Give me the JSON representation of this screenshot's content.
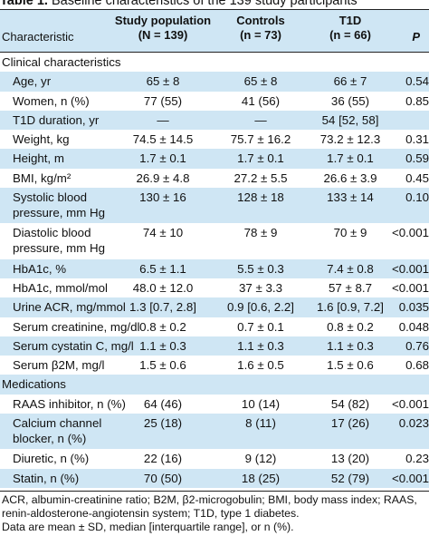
{
  "title": {
    "label": "Table 1.",
    "text": "Baseline characteristics of the 139 study participants"
  },
  "columns": [
    {
      "line1": "Characteristic",
      "line2": ""
    },
    {
      "line1": "Study population",
      "line2": "(N = 139)"
    },
    {
      "line1": "Controls",
      "line2": "(n = 73)"
    },
    {
      "line1": "T1D",
      "line2": "(n = 66)"
    },
    {
      "line1": "P",
      "line2": ""
    }
  ],
  "rows": [
    {
      "section": true,
      "cells": [
        "Clinical characteristics",
        "",
        "",
        "",
        ""
      ]
    },
    {
      "cells": [
        "Age, yr",
        "65 ± 8",
        "65 ± 8",
        "66 ± 7",
        "0.54"
      ]
    },
    {
      "cells": [
        "Women, n (%)",
        "77 (55)",
        "41 (56)",
        "36 (55)",
        "0.85"
      ]
    },
    {
      "cells": [
        "T1D duration, yr",
        "—",
        "—",
        "54 [52, 58]",
        ""
      ]
    },
    {
      "cells": [
        "Weight, kg",
        "74.5 ± 14.5",
        "75.7 ± 16.2",
        "73.2 ± 12.3",
        "0.31"
      ]
    },
    {
      "cells": [
        "Height, m",
        "1.7 ± 0.1",
        "1.7 ± 0.1",
        "1.7 ± 0.1",
        "0.59"
      ]
    },
    {
      "cells": [
        "BMI, kg/m²",
        "26.9 ± 4.8",
        "27.2 ± 5.5",
        "26.6 ± 3.9",
        "0.45"
      ]
    },
    {
      "tall": true,
      "cells": [
        "Systolic blood pressure, mm Hg",
        "130 ± 16",
        "128 ± 18",
        "133 ± 14",
        "0.10"
      ]
    },
    {
      "tall": true,
      "cells": [
        "Diastolic blood pressure, mm Hg",
        "74 ± 10",
        "78 ± 9",
        "70 ± 9",
        "<0.001"
      ]
    },
    {
      "cells": [
        "HbA1c, %",
        "6.5 ± 1.1",
        "5.5 ± 0.3",
        "7.4 ± 0.8",
        "<0.001"
      ]
    },
    {
      "cells": [
        "HbA1c, mmol/mol",
        "48.0 ± 12.0",
        "37 ± 3.3",
        "57 ± 8.7",
        "<0.001"
      ]
    },
    {
      "cells": [
        "Urine ACR, mg/mmol",
        "1.3 [0.7, 2.8]",
        "0.9 [0.6, 2.2]",
        "1.6 [0.9, 7.2]",
        "0.035"
      ]
    },
    {
      "cells": [
        "Serum creatinine, mg/dl",
        "0.8 ± 0.2",
        "0.7 ± 0.1",
        "0.8 ± 0.2",
        "0.048"
      ]
    },
    {
      "cells": [
        "Serum cystatin C, mg/l",
        "1.1 ± 0.3",
        "1.1 ± 0.3",
        "1.1 ± 0.3",
        "0.76"
      ]
    },
    {
      "cells": [
        "Serum β2M, mg/l",
        "1.5 ± 0.6",
        "1.6 ± 0.5",
        "1.5 ± 0.6",
        "0.68"
      ]
    },
    {
      "section": true,
      "cells": [
        "Medications",
        "",
        "",
        "",
        ""
      ]
    },
    {
      "cells": [
        "RAAS inhibitor, n (%)",
        "64 (46)",
        "10 (14)",
        "54 (82)",
        "<0.001"
      ]
    },
    {
      "tall": true,
      "cells": [
        "Calcium channel blocker, n (%)",
        "25 (18)",
        "8 (11)",
        "17 (26)",
        "0.023"
      ]
    },
    {
      "cells": [
        "Diuretic, n (%)",
        "22 (16)",
        "9 (12)",
        "13 (20)",
        "0.23"
      ]
    },
    {
      "cells": [
        "Statin, n (%)",
        "70 (50)",
        "18 (25)",
        "52 (79)",
        "<0.001"
      ]
    }
  ],
  "footer": [
    "ACR, albumin-creatinine ratio; B2M, β2-microgobulin; BMI, body mass index; RAAS, renin-aldosterone-angiotensin system; T1D, type 1 diabetes.",
    "Data are mean ± SD, median [interquartile range], or n (%)."
  ]
}
